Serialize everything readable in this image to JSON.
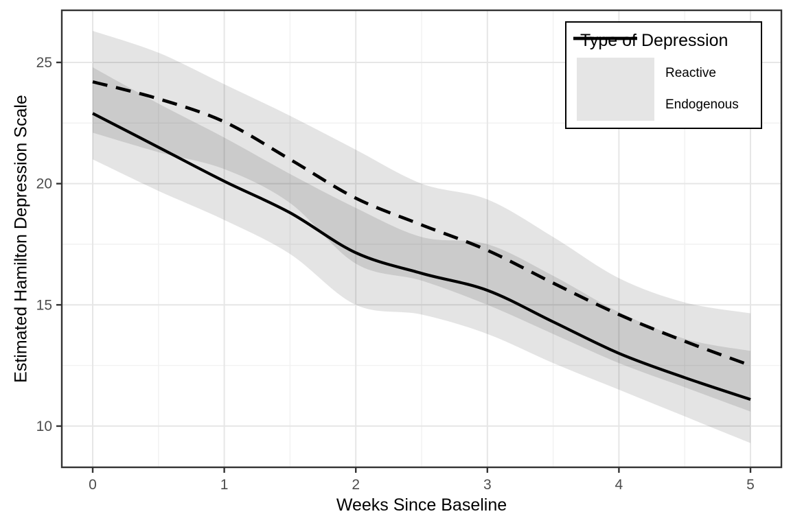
{
  "chart_data": {
    "type": "line",
    "title": "",
    "xlabel": "Weeks Since Baseline",
    "ylabel": "Estimated Hamilton Depression Scale",
    "x": [
      0,
      0.5,
      1,
      1.5,
      2,
      2.5,
      3,
      3.5,
      4,
      4.5,
      5
    ],
    "series": [
      {
        "name": "Reactive",
        "linestyle": "solid",
        "values": [
          22.9,
          21.5,
          20.1,
          18.8,
          17.15,
          16.3,
          15.6,
          14.3,
          13.0,
          12.0,
          11.1
        ],
        "ci_upper": [
          24.8,
          23.3,
          21.9,
          20.4,
          19.0,
          17.8,
          17.5,
          16.2,
          14.7,
          13.6,
          13.1
        ],
        "ci_lower": [
          21.0,
          19.7,
          18.5,
          17.1,
          15.0,
          14.6,
          13.8,
          12.6,
          11.5,
          10.4,
          9.3
        ]
      },
      {
        "name": "Endogenous",
        "linestyle": "dashed",
        "values": [
          24.2,
          23.5,
          22.55,
          21.0,
          19.4,
          18.3,
          17.25,
          15.9,
          14.6,
          13.5,
          12.5
        ],
        "ci_upper": [
          26.3,
          25.4,
          24.1,
          22.8,
          21.4,
          20.0,
          19.35,
          17.8,
          16.1,
          15.1,
          14.65
        ],
        "ci_lower": [
          22.1,
          21.3,
          20.6,
          19.2,
          16.7,
          16.0,
          15.0,
          13.8,
          12.6,
          11.6,
          10.6
        ]
      }
    ],
    "x_ticks": [
      0,
      1,
      2,
      3,
      4,
      5
    ],
    "x_minor_ticks": [
      0.5,
      1.5,
      2.5,
      3.5,
      4.5
    ],
    "y_ticks": [
      10,
      15,
      20,
      25
    ],
    "y_minor_ticks": [
      12.5,
      17.5,
      22.5
    ],
    "xlim": [
      -0.235,
      5.235
    ],
    "ylim": [
      8.3,
      27.15
    ],
    "grid": true,
    "legend": {
      "title": "Type of Depression",
      "position": "top-right",
      "items": [
        "Reactive",
        "Endogenous"
      ]
    },
    "colors": {
      "line": "#000000",
      "ribbon": "rgba(0,0,0,0.105)",
      "ribbon_single": "#E5E5E5",
      "ribbon_overlap": "#D0D0D0",
      "grid_major": "#E6E6E6",
      "grid_minor": "#F1F1F1",
      "panel_border": "#333333",
      "tick_mark": "#333333",
      "tick_label": "#4D4D4D",
      "background": "#FFFFFF"
    }
  }
}
